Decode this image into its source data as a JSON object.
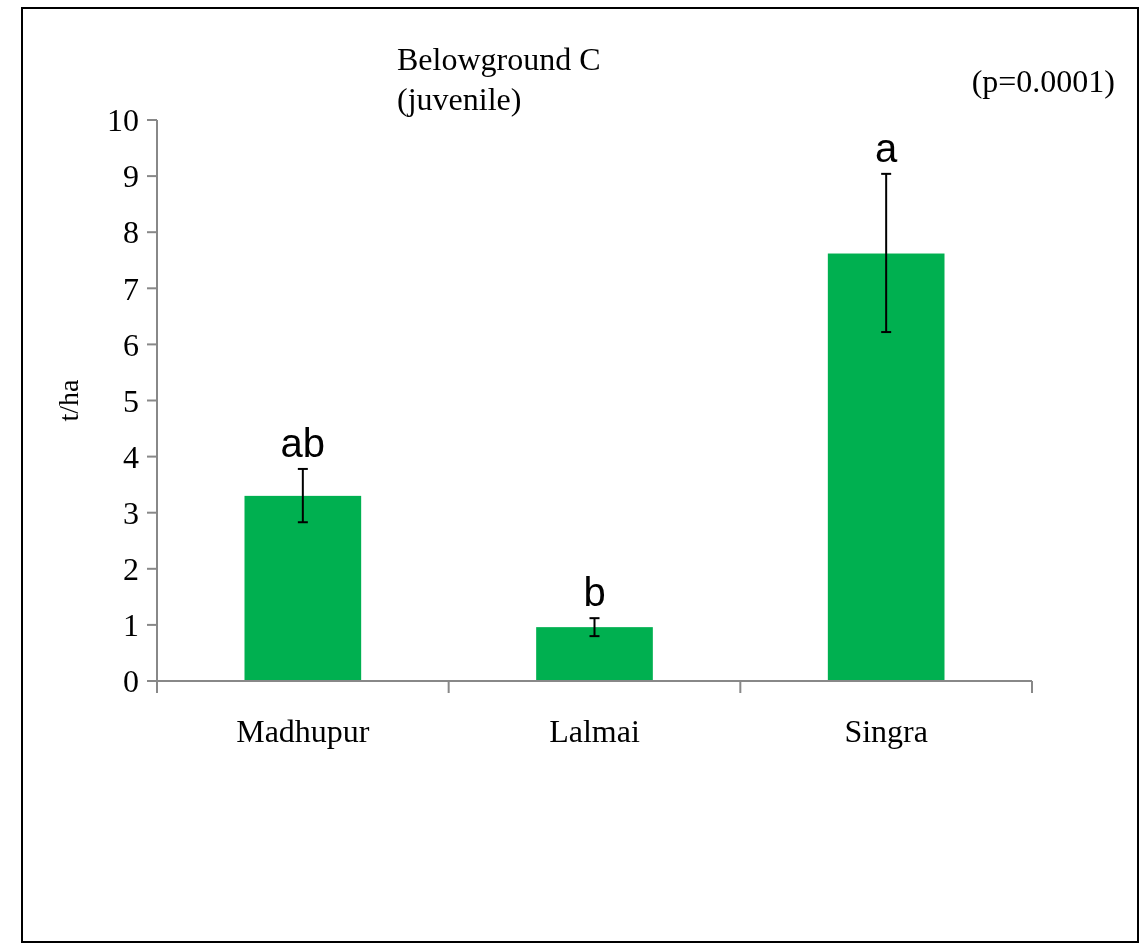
{
  "chart_data": {
    "type": "bar",
    "title": "Belowground C\n(juvenile)",
    "ylabel": "t/ha",
    "categories": [
      "Madhupur",
      "Lalmai",
      "Singra"
    ],
    "values": [
      3.3,
      0.96,
      7.62
    ],
    "color": "#00b050",
    "errors": [
      [
        2.83,
        3.78
      ],
      [
        0.8,
        1.12
      ],
      [
        6.22,
        9.04
      ]
    ],
    "ylim": [
      0,
      10
    ],
    "yticks": [
      0,
      1,
      2,
      3,
      4,
      5,
      6,
      7,
      8,
      9,
      10
    ],
    "grid": false,
    "annotations": [
      "(p=0.0001)",
      {
        "text": "ab",
        "x": "Madhupur",
        "y": 3.78
      },
      {
        "text": "b",
        "x": "Lalmai",
        "y": 1.12
      },
      {
        "text": "a",
        "x": "Singra",
        "y": 9.04
      }
    ]
  }
}
